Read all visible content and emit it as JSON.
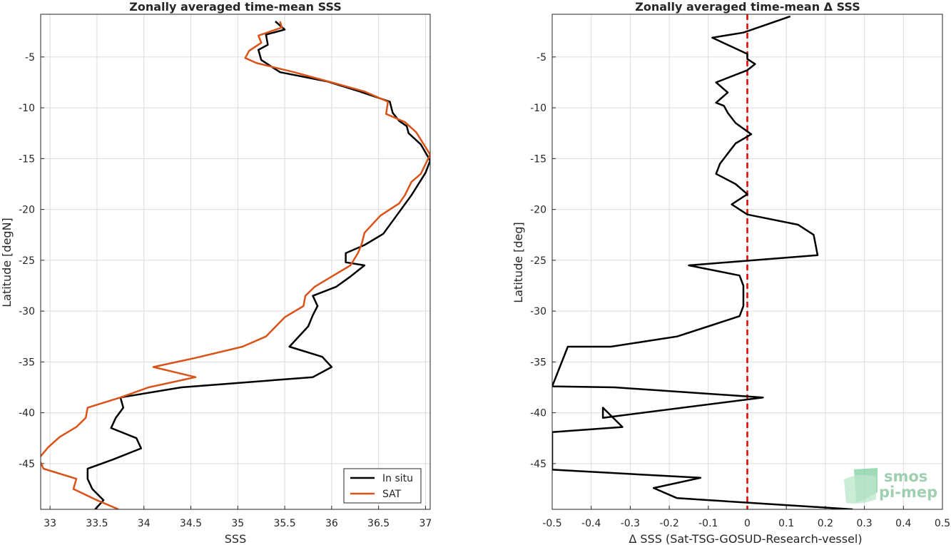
{
  "chart_data": [
    {
      "type": "line",
      "title": "Zonally averaged time-mean SSS",
      "xlabel": "SSS",
      "ylabel": "Latitude [degN]",
      "xlim": [
        32.9,
        37.05
      ],
      "ylim": [
        -49.5,
        -0.8
      ],
      "x_ticks": [
        33,
        33.5,
        34,
        34.5,
        35,
        35.5,
        36,
        36.5,
        37
      ],
      "x_tick_labels": [
        "33",
        "33.5",
        "34",
        "34.5",
        "35",
        "35.5",
        "36",
        "36.5",
        "37"
      ],
      "y_ticks": [
        -5,
        -10,
        -15,
        -20,
        -25,
        -30,
        -35,
        -40,
        -45
      ],
      "y_tick_labels": [
        "-5",
        "-10",
        "-15",
        "-20",
        "-25",
        "-30",
        "-35",
        "-40",
        "-45"
      ],
      "grid": true,
      "legend_position": "bottom-right",
      "series": [
        {
          "name": "In situ",
          "color": "#000000",
          "x": [
            35.4,
            35.5,
            35.3,
            35.32,
            35.22,
            35.25,
            35.45,
            35.95,
            36.3,
            36.62,
            36.65,
            36.72,
            36.8,
            36.82,
            36.95,
            37.05,
            37.0,
            36.85,
            36.7,
            36.55,
            36.35,
            36.15,
            36.15,
            36.35,
            36.2,
            36.05,
            35.8,
            35.85,
            35.8,
            35.75,
            35.55,
            35.9,
            36.0,
            35.8,
            34.4,
            33.75,
            33.78,
            33.7,
            33.65,
            33.92,
            33.97,
            33.67,
            33.4,
            33.4,
            33.45,
            33.57,
            33.48
          ],
          "y": [
            -1.5,
            -2.3,
            -2.8,
            -3.8,
            -4.3,
            -5.3,
            -6.5,
            -7.4,
            -8.4,
            -9.4,
            -10.5,
            -11.3,
            -11.8,
            -12.5,
            -13.6,
            -15.2,
            -16.4,
            -18.6,
            -20.5,
            -22.4,
            -23.5,
            -24.3,
            -25.2,
            -25.5,
            -26.6,
            -27.6,
            -28.5,
            -29.5,
            -30.4,
            -31.5,
            -33.5,
            -34.5,
            -35.5,
            -36.5,
            -37.5,
            -38.5,
            -39.5,
            -40.5,
            -41.5,
            -42.5,
            -43.5,
            -44.6,
            -45.5,
            -46.5,
            -47.5,
            -48.6,
            -49.5
          ]
        },
        {
          "name": "SAT",
          "color": "#D95319",
          "x": [
            35.45,
            35.47,
            35.22,
            35.25,
            35.12,
            35.08,
            35.2,
            35.6,
            36.0,
            36.35,
            36.6,
            36.58,
            36.78,
            36.9,
            37.05,
            36.95,
            36.85,
            36.78,
            36.72,
            36.52,
            36.35,
            36.32,
            36.28,
            36.2,
            36.0,
            35.82,
            35.72,
            35.7,
            35.5,
            35.3,
            35.05,
            34.55,
            34.1,
            34.55,
            34.05,
            33.75,
            33.4,
            33.38,
            33.28,
            33.1,
            32.98,
            32.88,
            32.93,
            33.28,
            33.25,
            33.5,
            33.73
          ],
          "y": [
            -1.5,
            -2.1,
            -2.9,
            -3.6,
            -4.4,
            -5.1,
            -5.6,
            -6.5,
            -7.5,
            -8.4,
            -9.4,
            -10.6,
            -11.4,
            -12.4,
            -14.6,
            -16.5,
            -17.3,
            -18.6,
            -19.4,
            -20.6,
            -22.3,
            -23.4,
            -24.3,
            -25.5,
            -26.6,
            -27.6,
            -28.5,
            -29.5,
            -30.6,
            -32.5,
            -33.5,
            -34.6,
            -35.5,
            -36.5,
            -37.5,
            -38.5,
            -39.5,
            -40.5,
            -41.4,
            -42.4,
            -43.4,
            -44.5,
            -45.5,
            -46.5,
            -47.5,
            -48.6,
            -49.5
          ]
        }
      ]
    },
    {
      "type": "line",
      "title": "Zonally averaged time-mean Δ SSS",
      "xlabel": "Δ SSS (Sat-TSG-GOSUD-Research-vessel)",
      "ylabel": "Latitude [deg]",
      "xlim": [
        -0.5,
        0.5
      ],
      "ylim": [
        -49.5,
        -0.8
      ],
      "x_ticks": [
        -0.5,
        -0.4,
        -0.3,
        -0.2,
        -0.1,
        0,
        0.1,
        0.2,
        0.3,
        0.4,
        0.5
      ],
      "x_tick_labels": [
        "-0.5",
        "-0.4",
        "-0.3",
        "-0.2",
        "-0.1",
        "0",
        "0.1",
        "0.2",
        "0.3",
        "0.4",
        "0.5"
      ],
      "y_ticks": [
        -5,
        -10,
        -15,
        -20,
        -25,
        -30,
        -35,
        -40,
        -45
      ],
      "y_tick_labels": [
        "-5",
        "-10",
        "-15",
        "-20",
        "-25",
        "-30",
        "-35",
        "-40",
        "-45"
      ],
      "grid": true,
      "reference_line": {
        "x": 0,
        "color": "#E00000",
        "style": "dashed"
      },
      "series": [
        {
          "color": "#000000",
          "x": [
            0.11,
            -0.01,
            -0.09,
            0.0,
            0.0,
            0.02,
            0.0,
            -0.08,
            -0.05,
            -0.08,
            -0.06,
            -0.05,
            -0.03,
            0.01,
            -0.03,
            -0.05,
            -0.07,
            -0.08,
            -0.03,
            0.0,
            -0.04,
            0.0,
            0.13,
            0.17,
            0.18,
            -0.15,
            -0.02,
            -0.01,
            -0.01,
            -0.02,
            -0.1,
            -0.18,
            -0.35,
            -0.46,
            -0.5,
            -0.5,
            -0.34,
            0.04,
            -0.37,
            -0.37,
            -0.32,
            -0.5,
            -0.5,
            -0.12,
            -0.24,
            -0.18,
            0.27
          ],
          "y": [
            -1.0,
            -2.6,
            -3.1,
            -4.7,
            -5.2,
            -5.7,
            -6.3,
            -7.5,
            -8.5,
            -9.5,
            -9.8,
            -10.5,
            -11.5,
            -12.6,
            -13.5,
            -14.5,
            -15.5,
            -16.5,
            -17.5,
            -18.5,
            -19.5,
            -20.5,
            -21.5,
            -22.5,
            -24.5,
            -25.5,
            -26.5,
            -27.5,
            -29.5,
            -30.5,
            -31.5,
            -32.5,
            -33.5,
            -33.5,
            -37.4,
            -37.4,
            -37.5,
            -38.5,
            -40.5,
            -39.5,
            -41.4,
            -41.9,
            -45.6,
            -46.4,
            -47.4,
            -48.4,
            -49.5
          ]
        }
      ]
    }
  ],
  "logo": {
    "line1": "smos",
    "line2": "pi-mep"
  }
}
